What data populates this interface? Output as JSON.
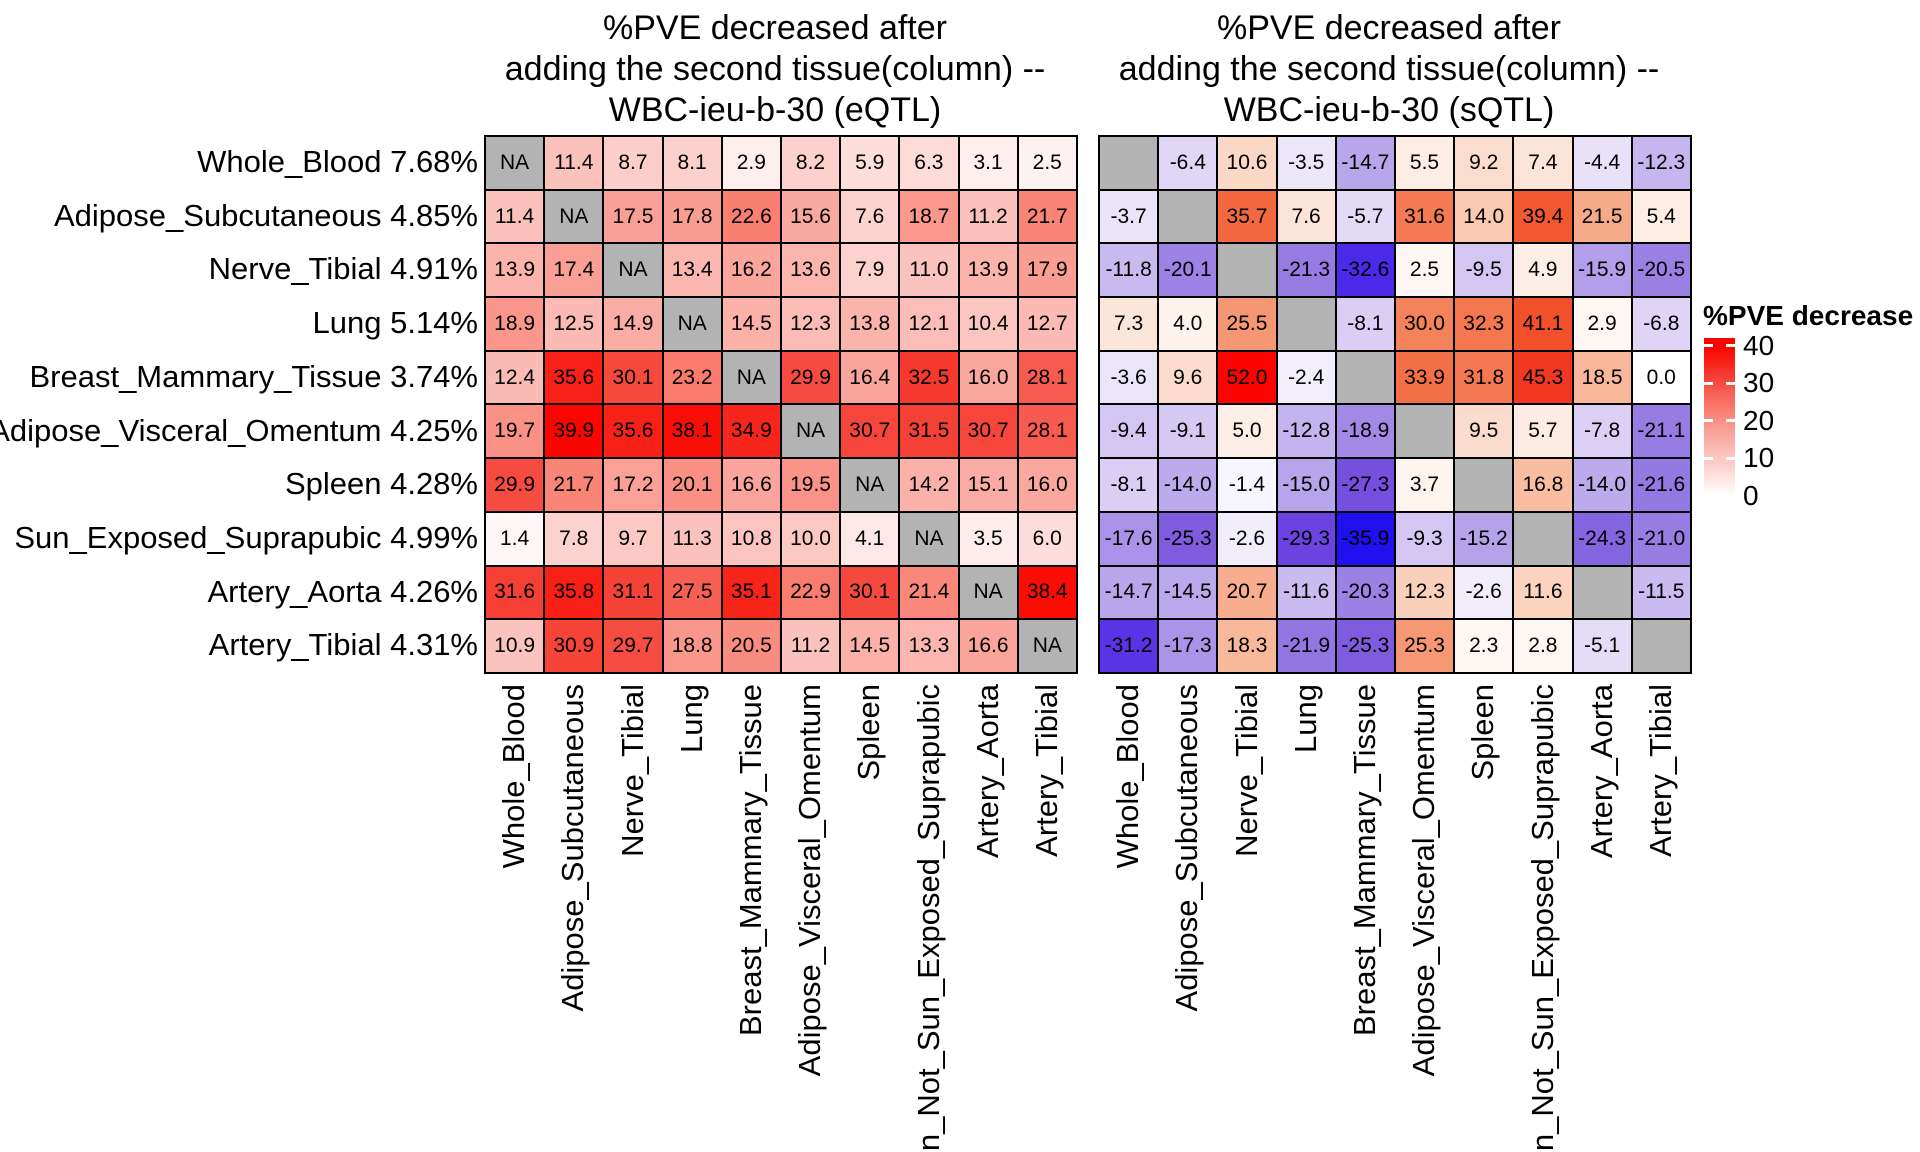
{
  "titles": {
    "left": [
      "%PVE decreased after",
      "adding the second tissue(column) --",
      "WBC-ieu-b-30 (eQTL)"
    ],
    "right": [
      "%PVE decreased after",
      "adding the second tissue(column) --",
      "WBC-ieu-b-30 (sQTL)"
    ]
  },
  "legend": {
    "title": "%PVE decrease",
    "ticks": [
      "40",
      "30",
      "20",
      "10",
      "0"
    ],
    "bar_range": [
      0,
      42
    ]
  },
  "colors": {
    "background": "#ffffff",
    "na_cell": "#b3b3b3",
    "cell_border": "#000000",
    "red_max": "#fc0300",
    "blue_max": "#2010f0",
    "red_ramp": [
      [
        0,
        "#ffffff"
      ],
      [
        0.1,
        "#fee9e8"
      ],
      [
        0.2,
        "#fcd1cd"
      ],
      [
        0.285,
        "#fbc1bb"
      ],
      [
        0.45,
        "#fa9c92"
      ],
      [
        0.565,
        "#f97f71"
      ],
      [
        0.7,
        "#f75c50"
      ],
      [
        0.75,
        "#f64a3f"
      ],
      [
        0.81,
        "#f53a30"
      ],
      [
        0.87,
        "#f7261c"
      ],
      [
        0.95,
        "#fb0f08"
      ],
      [
        1,
        "#fc0300"
      ]
    ],
    "orange_red_ramp": [
      [
        0,
        "#ffffff"
      ],
      [
        0.1,
        "#fdeee6"
      ],
      [
        0.2,
        "#fbd8c6"
      ],
      [
        0.3,
        "#f9c3a8"
      ],
      [
        0.4,
        "#f7ad8d"
      ],
      [
        0.5,
        "#f5956f"
      ],
      [
        0.6,
        "#f47c55"
      ],
      [
        0.68,
        "#f36940"
      ],
      [
        0.77,
        "#f2552e"
      ],
      [
        0.87,
        "#f03a20"
      ],
      [
        0.95,
        "#f81505"
      ],
      [
        1,
        "#fb0400"
      ]
    ],
    "blue_ramp": [
      [
        0,
        "#ffffff"
      ],
      [
        0.067,
        "#f2eefb"
      ],
      [
        0.1,
        "#ebe5f9"
      ],
      [
        0.23,
        "#d9cdf4"
      ],
      [
        0.36,
        "#c2b2ee"
      ],
      [
        0.42,
        "#b6a4ea"
      ],
      [
        0.5,
        "#a78fe7"
      ],
      [
        0.56,
        "#9c82e4"
      ],
      [
        0.6,
        "#9379e2"
      ],
      [
        0.71,
        "#7e5bde"
      ],
      [
        0.82,
        "#6a42e0"
      ],
      [
        0.91,
        "#4929e8"
      ],
      [
        1,
        "#2010f0"
      ]
    ]
  },
  "chart_data": [
    {
      "type": "heatmap",
      "title": "%PVE decreased after adding the second tissue(column) -- WBC-ieu-b-30 (eQTL)",
      "legend_title": "%PVE decrease",
      "na_label": "NA",
      "rows": [
        "Whole_Blood 7.68%",
        "Adipose_Subcutaneous 4.85%",
        "Nerve_Tibial 4.91%",
        "Lung 5.14%",
        "Breast_Mammary_Tissue 3.74%",
        "Adipose_Visceral_Omentum 4.25%",
        "Spleen 4.28%",
        "Sun_Exposed_Suprapubic 4.99%",
        "Artery_Aorta 4.26%",
        "Artery_Tibial 4.31%"
      ],
      "columns": [
        "Whole_Blood",
        "Adipose_Subcutaneous",
        "Nerve_Tibial",
        "Lung",
        "Breast_Mammary_Tissue",
        "Adipose_Visceral_Omentum",
        "Spleen",
        "n_Not_Sun_Exposed_Suprapubic",
        "Artery_Aorta",
        "Artery_Tibial"
      ],
      "scale": {
        "positive_full_red_at": 40,
        "zero_color": "#ffffff",
        "legend_ticks": [
          0,
          10,
          20,
          30,
          40
        ]
      },
      "values": [
        [
          null,
          11.4,
          8.7,
          8.1,
          2.9,
          8.2,
          5.9,
          6.3,
          3.1,
          2.5
        ],
        [
          11.4,
          null,
          17.5,
          17.8,
          22.6,
          15.6,
          7.6,
          18.7,
          11.2,
          21.7
        ],
        [
          13.9,
          17.4,
          null,
          13.4,
          16.2,
          13.6,
          7.9,
          11.0,
          13.9,
          17.9
        ],
        [
          18.9,
          12.5,
          14.9,
          null,
          14.5,
          12.3,
          13.8,
          12.1,
          10.4,
          12.7
        ],
        [
          12.4,
          35.6,
          30.1,
          23.2,
          null,
          29.9,
          16.4,
          32.5,
          16.0,
          28.1
        ],
        [
          19.7,
          39.9,
          35.6,
          38.1,
          34.9,
          null,
          30.7,
          31.5,
          30.7,
          28.1
        ],
        [
          29.9,
          21.7,
          17.2,
          20.1,
          16.6,
          19.5,
          null,
          14.2,
          15.1,
          16.0
        ],
        [
          1.4,
          7.8,
          9.7,
          11.3,
          10.8,
          10.0,
          4.1,
          null,
          3.5,
          6.0
        ],
        [
          31.6,
          35.8,
          31.1,
          27.5,
          35.1,
          22.9,
          30.1,
          21.4,
          null,
          38.4
        ],
        [
          10.9,
          30.9,
          29.7,
          18.8,
          20.5,
          11.2,
          14.5,
          13.3,
          16.6,
          null
        ]
      ]
    },
    {
      "type": "heatmap",
      "title": "%PVE decreased after adding the second tissue(column) -- WBC-ieu-b-30 (sQTL)",
      "legend_title": "%PVE decrease",
      "na_label": "",
      "rows": [
        "Whole_Blood 7.68%",
        "Adipose_Subcutaneous 4.85%",
        "Nerve_Tibial 4.91%",
        "Lung 5.14%",
        "Breast_Mammary_Tissue 3.74%",
        "Adipose_Visceral_Omentum 4.25%",
        "Spleen 4.28%",
        "Sun_Exposed_Suprapubic 4.99%",
        "Artery_Aorta 4.26%",
        "Artery_Tibial 4.31%"
      ],
      "columns": [
        "Whole_Blood",
        "Adipose_Subcutaneous",
        "Nerve_Tibial",
        "Lung",
        "Breast_Mammary_Tissue",
        "Adipose_Visceral_Omentum",
        "Spleen",
        "n_Not_Sun_Exposed_Suprapubic",
        "Artery_Aorta",
        "Artery_Tibial"
      ],
      "scale": {
        "positive_full_red_at": 52,
        "negative_full_blue_at": -35.9,
        "zero_color": "#ffffff"
      },
      "values": [
        [
          null,
          -6.4,
          10.6,
          -3.5,
          -14.7,
          5.5,
          9.2,
          7.4,
          -4.4,
          -12.3
        ],
        [
          -3.7,
          null,
          35.7,
          7.6,
          -5.7,
          31.6,
          14.0,
          39.4,
          21.5,
          5.4
        ],
        [
          -11.8,
          -20.1,
          null,
          -21.3,
          -32.6,
          2.5,
          -9.5,
          4.9,
          -15.9,
          -20.5
        ],
        [
          7.3,
          4.0,
          25.5,
          null,
          -8.1,
          30.0,
          32.3,
          41.1,
          2.9,
          -6.8
        ],
        [
          -3.6,
          9.6,
          52.0,
          -2.4,
          null,
          33.9,
          31.8,
          45.3,
          18.5,
          0.0
        ],
        [
          -9.4,
          -9.1,
          5.0,
          -12.8,
          -18.9,
          null,
          9.5,
          5.7,
          -7.8,
          -21.1
        ],
        [
          -8.1,
          -14.0,
          -1.4,
          -15.0,
          -27.3,
          3.7,
          null,
          16.8,
          -14.0,
          -21.6
        ],
        [
          -17.6,
          -25.3,
          -2.6,
          -29.3,
          -35.9,
          -9.3,
          -15.2,
          null,
          -24.3,
          -21.0
        ],
        [
          -14.7,
          -14.5,
          20.7,
          -11.6,
          -20.3,
          12.3,
          -2.6,
          11.6,
          null,
          -11.5
        ],
        [
          -31.2,
          -17.3,
          18.3,
          -21.9,
          -25.3,
          25.3,
          2.3,
          2.8,
          -5.1,
          null
        ]
      ]
    }
  ]
}
